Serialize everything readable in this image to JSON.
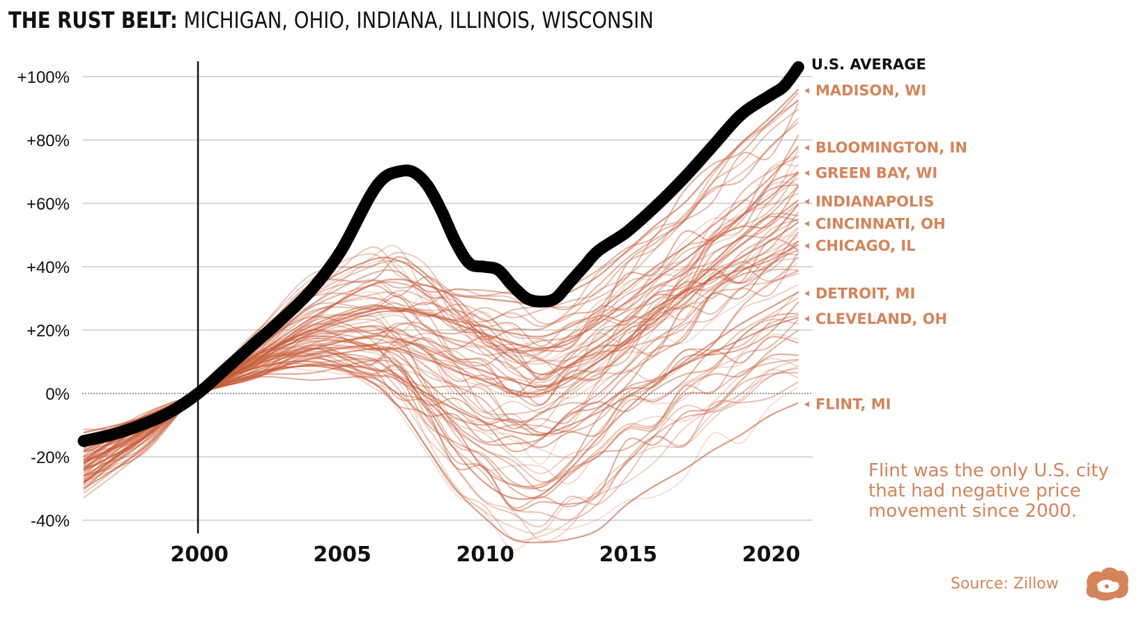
{
  "header": {
    "title_bold": "THE RUST BELT:",
    "title_rest": " MICHIGAN, OHIO, INDIANA, ILLINOIS, WISCONSIN"
  },
  "colors": {
    "average_line": "#000000",
    "city_lines": "#c65a36",
    "label_orange": "#d4845a",
    "grid": "#d9d9d9"
  },
  "chart_data": {
    "type": "line",
    "title": "THE RUST BELT: MICHIGAN, OHIO, INDIANA, ILLINOIS, WISCONSIN",
    "xlabel": "",
    "ylabel": "",
    "xlim": [
      1996,
      2021.5
    ],
    "ylim": [
      -45,
      105
    ],
    "x_ticks": [
      2000,
      2005,
      2010,
      2015,
      2020
    ],
    "y_ticks": [
      {
        "value": 100,
        "label": "+100%"
      },
      {
        "value": 80,
        "label": "+80%"
      },
      {
        "value": 60,
        "label": "+60%"
      },
      {
        "value": 40,
        "label": "+40%"
      },
      {
        "value": 20,
        "label": "+20%"
      },
      {
        "value": 0,
        "label": "0%"
      },
      {
        "value": -20,
        "label": "-20%"
      },
      {
        "value": -40,
        "label": "-40%"
      }
    ],
    "reference_year": 2000,
    "average": {
      "name": "U.S. AVERAGE",
      "x": [
        1996,
        1997,
        1998,
        1999,
        2000,
        2001,
        2002,
        2003,
        2004,
        2005,
        2006,
        2006.5,
        2007,
        2007.5,
        2008,
        2008.5,
        2009,
        2009.5,
        2010,
        2010.5,
        2011,
        2011.5,
        2012,
        2012.5,
        2013,
        2013.5,
        2014,
        2015,
        2016,
        2017,
        2018,
        2019,
        2020,
        2020.5,
        2021
      ],
      "values": [
        -15,
        -13,
        -10,
        -6,
        0,
        8,
        16,
        24,
        33,
        45,
        62,
        68,
        70,
        70,
        66,
        58,
        48,
        41,
        40,
        39,
        34,
        30,
        29,
        30,
        35,
        40,
        45,
        51,
        59,
        68,
        78,
        88,
        94,
        97,
        103
      ]
    },
    "series": [
      {
        "name": "MADISON, WI",
        "end_value": 96,
        "x": [
          1996,
          1998,
          2000,
          2002,
          2004,
          2006,
          2007,
          2008,
          2009,
          2010,
          2011,
          2012,
          2013,
          2014,
          2015,
          2016,
          2017,
          2018,
          2019,
          2020,
          2021
        ],
        "values": [
          -20,
          -11,
          0,
          12,
          24,
          34,
          36,
          34,
          31,
          30,
          29,
          28,
          32,
          37,
          45,
          53,
          60,
          70,
          79,
          87,
          96
        ]
      },
      {
        "name": "BLOOMINGTON, IN",
        "end_value": 78,
        "x": [
          1996,
          1998,
          2000,
          2002,
          2004,
          2006,
          2007,
          2008,
          2009,
          2010,
          2011,
          2012,
          2013,
          2014,
          2015,
          2016,
          2017,
          2018,
          2019,
          2020,
          2021
        ],
        "values": [
          -18,
          -10,
          0,
          10,
          19,
          25,
          26,
          25,
          23,
          21,
          19,
          18,
          21,
          26,
          33,
          40,
          46,
          53,
          60,
          68,
          78
        ]
      },
      {
        "name": "GREEN BAY, WI",
        "end_value": 70,
        "x": [
          1996,
          1998,
          2000,
          2002,
          2004,
          2006,
          2007,
          2008,
          2009,
          2010,
          2011,
          2012,
          2013,
          2014,
          2015,
          2016,
          2017,
          2018,
          2019,
          2020,
          2021
        ],
        "values": [
          -22,
          -12,
          0,
          11,
          20,
          26,
          27,
          25,
          22,
          19,
          16,
          14,
          17,
          22,
          29,
          36,
          42,
          49,
          56,
          62,
          70
        ]
      },
      {
        "name": "INDIANAPOLIS",
        "end_value": 61,
        "x": [
          1996,
          1998,
          2000,
          2002,
          2004,
          2006,
          2007,
          2008,
          2009,
          2010,
          2011,
          2012,
          2013,
          2014,
          2015,
          2016,
          2017,
          2018,
          2019,
          2020,
          2021
        ],
        "values": [
          -14,
          -8,
          0,
          6,
          11,
          14,
          14,
          11,
          7,
          4,
          1,
          0,
          4,
          10,
          17,
          25,
          32,
          40,
          47,
          54,
          61
        ]
      },
      {
        "name": "CINCINNATI, OH",
        "end_value": 54,
        "x": [
          1996,
          1998,
          2000,
          2002,
          2004,
          2006,
          2007,
          2008,
          2009,
          2010,
          2011,
          2012,
          2013,
          2014,
          2015,
          2016,
          2017,
          2018,
          2019,
          2020,
          2021
        ],
        "values": [
          -16,
          -9,
          0,
          8,
          14,
          18,
          17,
          14,
          10,
          7,
          4,
          2,
          5,
          10,
          16,
          23,
          30,
          37,
          43,
          48,
          54
        ]
      },
      {
        "name": "CHICAGO, IL",
        "end_value": 47,
        "x": [
          1996,
          1998,
          2000,
          2002,
          2004,
          2006,
          2007,
          2008,
          2009,
          2010,
          2011,
          2012,
          2013,
          2014,
          2015,
          2016,
          2017,
          2018,
          2019,
          2020,
          2021
        ],
        "values": [
          -26,
          -15,
          0,
          18,
          33,
          42,
          42,
          36,
          26,
          18,
          11,
          6,
          9,
          15,
          21,
          27,
          32,
          36,
          39,
          42,
          47
        ]
      },
      {
        "name": "DETROIT, MI",
        "end_value": 32,
        "x": [
          1996,
          1998,
          2000,
          2002,
          2004,
          2006,
          2007,
          2008,
          2009,
          2010,
          2011,
          2012,
          2013,
          2014,
          2015,
          2016,
          2017,
          2018,
          2019,
          2020,
          2021
        ],
        "values": [
          -28,
          -16,
          0,
          12,
          18,
          15,
          8,
          -4,
          -18,
          -28,
          -33,
          -32,
          -24,
          -14,
          -5,
          3,
          10,
          16,
          22,
          27,
          32
        ]
      },
      {
        "name": "CLEVELAND, OH",
        "end_value": 24,
        "x": [
          1996,
          1998,
          2000,
          2002,
          2004,
          2006,
          2007,
          2008,
          2009,
          2010,
          2011,
          2012,
          2013,
          2014,
          2015,
          2016,
          2017,
          2018,
          2019,
          2020,
          2021
        ],
        "values": [
          -17,
          -9,
          0,
          6,
          9,
          8,
          5,
          0,
          -5,
          -9,
          -12,
          -13,
          -10,
          -6,
          -1,
          4,
          9,
          13,
          17,
          21,
          24
        ]
      },
      {
        "name": "FLINT, MI",
        "end_value": -3,
        "x": [
          1996,
          1998,
          2000,
          2002,
          2004,
          2006,
          2007,
          2008,
          2009,
          2010,
          2011,
          2012,
          2013,
          2014,
          2015,
          2016,
          2017,
          2018,
          2019,
          2020,
          2021
        ],
        "values": [
          -30,
          -18,
          0,
          8,
          10,
          4,
          -4,
          -17,
          -30,
          -39,
          -46,
          -47,
          -46,
          -43,
          -35,
          -29,
          -24,
          -18,
          -13,
          -7,
          -3
        ]
      }
    ],
    "annotation": "Flint was the only U.S. city that had negative price movement since 2000.",
    "source": "Source: Zillow"
  }
}
